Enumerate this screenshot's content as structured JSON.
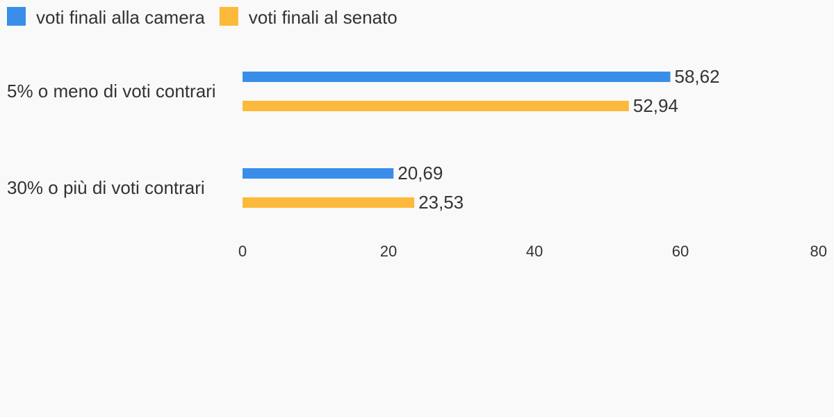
{
  "chart_data": {
    "type": "bar",
    "orientation": "horizontal",
    "categories": [
      "5% o meno di voti contrari",
      "30% o più di voti contrari"
    ],
    "series": [
      {
        "name": "voti finali alla camera",
        "color": "#3a8eea",
        "values": [
          58.62,
          20.69
        ],
        "value_labels": [
          "58,62",
          "20,69"
        ]
      },
      {
        "name": "voti finali al senato",
        "color": "#fdb93a",
        "values": [
          52.94,
          23.53
        ],
        "value_labels": [
          "52,94",
          "23,53"
        ]
      }
    ],
    "xlim": [
      0,
      80
    ],
    "xticks": [
      0,
      20,
      40,
      60,
      80
    ],
    "grid": false,
    "legend": "top-left"
  }
}
